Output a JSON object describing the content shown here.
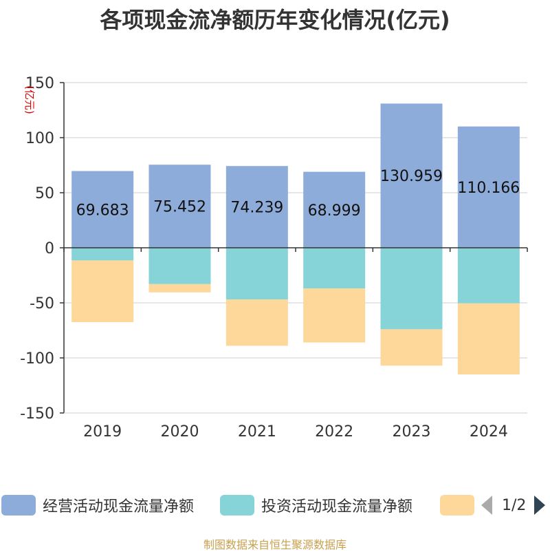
{
  "title": "各项现金流净额历年变化情况(亿元)",
  "footer": "制图数据来自恒生聚源数据库",
  "pager": {
    "text": "1/2"
  },
  "chart_data": {
    "type": "bar",
    "stacked": true,
    "title": "各项现金流净额历年变化情况(亿元)",
    "ylabel": "(亿元)",
    "ylim": [
      -150,
      150
    ],
    "yticks": [
      150,
      100,
      50,
      0,
      -50,
      -100,
      -150
    ],
    "grid": true,
    "legend_position": "bottom",
    "categories": [
      "2019",
      "2020",
      "2021",
      "2022",
      "2023",
      "2024"
    ],
    "series": [
      {
        "name": "经营活动现金流量净额",
        "color": "#8eacda",
        "values": [
          69.683,
          75.452,
          74.239,
          68.999,
          130.959,
          110.166
        ],
        "labels": [
          "69.683",
          "75.452",
          "74.239",
          "68.999",
          "130.959",
          "110.166"
        ]
      },
      {
        "name": "投资活动现金流量净额",
        "color": "#86d4d8",
        "values": [
          -11.5,
          -33,
          -47,
          -37,
          -74,
          -50.5
        ]
      },
      {
        "name": "",
        "color": "#fdd89a",
        "values": [
          -56,
          -7.5,
          -42,
          -49,
          -33,
          -64.5
        ]
      }
    ]
  }
}
